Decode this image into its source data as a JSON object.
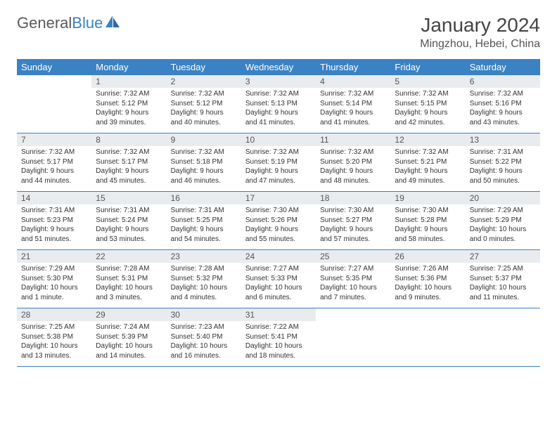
{
  "header": {
    "logo_general": "General",
    "logo_blue": "Blue",
    "month_title": "January 2024",
    "location": "Mingzhou, Hebei, China"
  },
  "colors": {
    "header_bg": "#3b82c4",
    "header_fg": "#ffffff",
    "daynum_bg": "#e9ecef",
    "border": "#3b82c4",
    "text": "#333333",
    "logo_gray": "#5a5a5a",
    "logo_blue": "#3b82c4"
  },
  "weekdays": [
    "Sunday",
    "Monday",
    "Tuesday",
    "Wednesday",
    "Thursday",
    "Friday",
    "Saturday"
  ],
  "days": [
    {
      "n": "1",
      "sr": "Sunrise: 7:32 AM",
      "ss": "Sunset: 5:12 PM",
      "dl1": "Daylight: 9 hours",
      "dl2": "and 39 minutes."
    },
    {
      "n": "2",
      "sr": "Sunrise: 7:32 AM",
      "ss": "Sunset: 5:12 PM",
      "dl1": "Daylight: 9 hours",
      "dl2": "and 40 minutes."
    },
    {
      "n": "3",
      "sr": "Sunrise: 7:32 AM",
      "ss": "Sunset: 5:13 PM",
      "dl1": "Daylight: 9 hours",
      "dl2": "and 41 minutes."
    },
    {
      "n": "4",
      "sr": "Sunrise: 7:32 AM",
      "ss": "Sunset: 5:14 PM",
      "dl1": "Daylight: 9 hours",
      "dl2": "and 41 minutes."
    },
    {
      "n": "5",
      "sr": "Sunrise: 7:32 AM",
      "ss": "Sunset: 5:15 PM",
      "dl1": "Daylight: 9 hours",
      "dl2": "and 42 minutes."
    },
    {
      "n": "6",
      "sr": "Sunrise: 7:32 AM",
      "ss": "Sunset: 5:16 PM",
      "dl1": "Daylight: 9 hours",
      "dl2": "and 43 minutes."
    },
    {
      "n": "7",
      "sr": "Sunrise: 7:32 AM",
      "ss": "Sunset: 5:17 PM",
      "dl1": "Daylight: 9 hours",
      "dl2": "and 44 minutes."
    },
    {
      "n": "8",
      "sr": "Sunrise: 7:32 AM",
      "ss": "Sunset: 5:17 PM",
      "dl1": "Daylight: 9 hours",
      "dl2": "and 45 minutes."
    },
    {
      "n": "9",
      "sr": "Sunrise: 7:32 AM",
      "ss": "Sunset: 5:18 PM",
      "dl1": "Daylight: 9 hours",
      "dl2": "and 46 minutes."
    },
    {
      "n": "10",
      "sr": "Sunrise: 7:32 AM",
      "ss": "Sunset: 5:19 PM",
      "dl1": "Daylight: 9 hours",
      "dl2": "and 47 minutes."
    },
    {
      "n": "11",
      "sr": "Sunrise: 7:32 AM",
      "ss": "Sunset: 5:20 PM",
      "dl1": "Daylight: 9 hours",
      "dl2": "and 48 minutes."
    },
    {
      "n": "12",
      "sr": "Sunrise: 7:32 AM",
      "ss": "Sunset: 5:21 PM",
      "dl1": "Daylight: 9 hours",
      "dl2": "and 49 minutes."
    },
    {
      "n": "13",
      "sr": "Sunrise: 7:31 AM",
      "ss": "Sunset: 5:22 PM",
      "dl1": "Daylight: 9 hours",
      "dl2": "and 50 minutes."
    },
    {
      "n": "14",
      "sr": "Sunrise: 7:31 AM",
      "ss": "Sunset: 5:23 PM",
      "dl1": "Daylight: 9 hours",
      "dl2": "and 51 minutes."
    },
    {
      "n": "15",
      "sr": "Sunrise: 7:31 AM",
      "ss": "Sunset: 5:24 PM",
      "dl1": "Daylight: 9 hours",
      "dl2": "and 53 minutes."
    },
    {
      "n": "16",
      "sr": "Sunrise: 7:31 AM",
      "ss": "Sunset: 5:25 PM",
      "dl1": "Daylight: 9 hours",
      "dl2": "and 54 minutes."
    },
    {
      "n": "17",
      "sr": "Sunrise: 7:30 AM",
      "ss": "Sunset: 5:26 PM",
      "dl1": "Daylight: 9 hours",
      "dl2": "and 55 minutes."
    },
    {
      "n": "18",
      "sr": "Sunrise: 7:30 AM",
      "ss": "Sunset: 5:27 PM",
      "dl1": "Daylight: 9 hours",
      "dl2": "and 57 minutes."
    },
    {
      "n": "19",
      "sr": "Sunrise: 7:30 AM",
      "ss": "Sunset: 5:28 PM",
      "dl1": "Daylight: 9 hours",
      "dl2": "and 58 minutes."
    },
    {
      "n": "20",
      "sr": "Sunrise: 7:29 AM",
      "ss": "Sunset: 5:29 PM",
      "dl1": "Daylight: 10 hours",
      "dl2": "and 0 minutes."
    },
    {
      "n": "21",
      "sr": "Sunrise: 7:29 AM",
      "ss": "Sunset: 5:30 PM",
      "dl1": "Daylight: 10 hours",
      "dl2": "and 1 minute."
    },
    {
      "n": "22",
      "sr": "Sunrise: 7:28 AM",
      "ss": "Sunset: 5:31 PM",
      "dl1": "Daylight: 10 hours",
      "dl2": "and 3 minutes."
    },
    {
      "n": "23",
      "sr": "Sunrise: 7:28 AM",
      "ss": "Sunset: 5:32 PM",
      "dl1": "Daylight: 10 hours",
      "dl2": "and 4 minutes."
    },
    {
      "n": "24",
      "sr": "Sunrise: 7:27 AM",
      "ss": "Sunset: 5:33 PM",
      "dl1": "Daylight: 10 hours",
      "dl2": "and 6 minutes."
    },
    {
      "n": "25",
      "sr": "Sunrise: 7:27 AM",
      "ss": "Sunset: 5:35 PM",
      "dl1": "Daylight: 10 hours",
      "dl2": "and 7 minutes."
    },
    {
      "n": "26",
      "sr": "Sunrise: 7:26 AM",
      "ss": "Sunset: 5:36 PM",
      "dl1": "Daylight: 10 hours",
      "dl2": "and 9 minutes."
    },
    {
      "n": "27",
      "sr": "Sunrise: 7:25 AM",
      "ss": "Sunset: 5:37 PM",
      "dl1": "Daylight: 10 hours",
      "dl2": "and 11 minutes."
    },
    {
      "n": "28",
      "sr": "Sunrise: 7:25 AM",
      "ss": "Sunset: 5:38 PM",
      "dl1": "Daylight: 10 hours",
      "dl2": "and 13 minutes."
    },
    {
      "n": "29",
      "sr": "Sunrise: 7:24 AM",
      "ss": "Sunset: 5:39 PM",
      "dl1": "Daylight: 10 hours",
      "dl2": "and 14 minutes."
    },
    {
      "n": "30",
      "sr": "Sunrise: 7:23 AM",
      "ss": "Sunset: 5:40 PM",
      "dl1": "Daylight: 10 hours",
      "dl2": "and 16 minutes."
    },
    {
      "n": "31",
      "sr": "Sunrise: 7:22 AM",
      "ss": "Sunset: 5:41 PM",
      "dl1": "Daylight: 10 hours",
      "dl2": "and 18 minutes."
    }
  ],
  "layout": {
    "start_offset": 1,
    "total_cells": 35
  }
}
